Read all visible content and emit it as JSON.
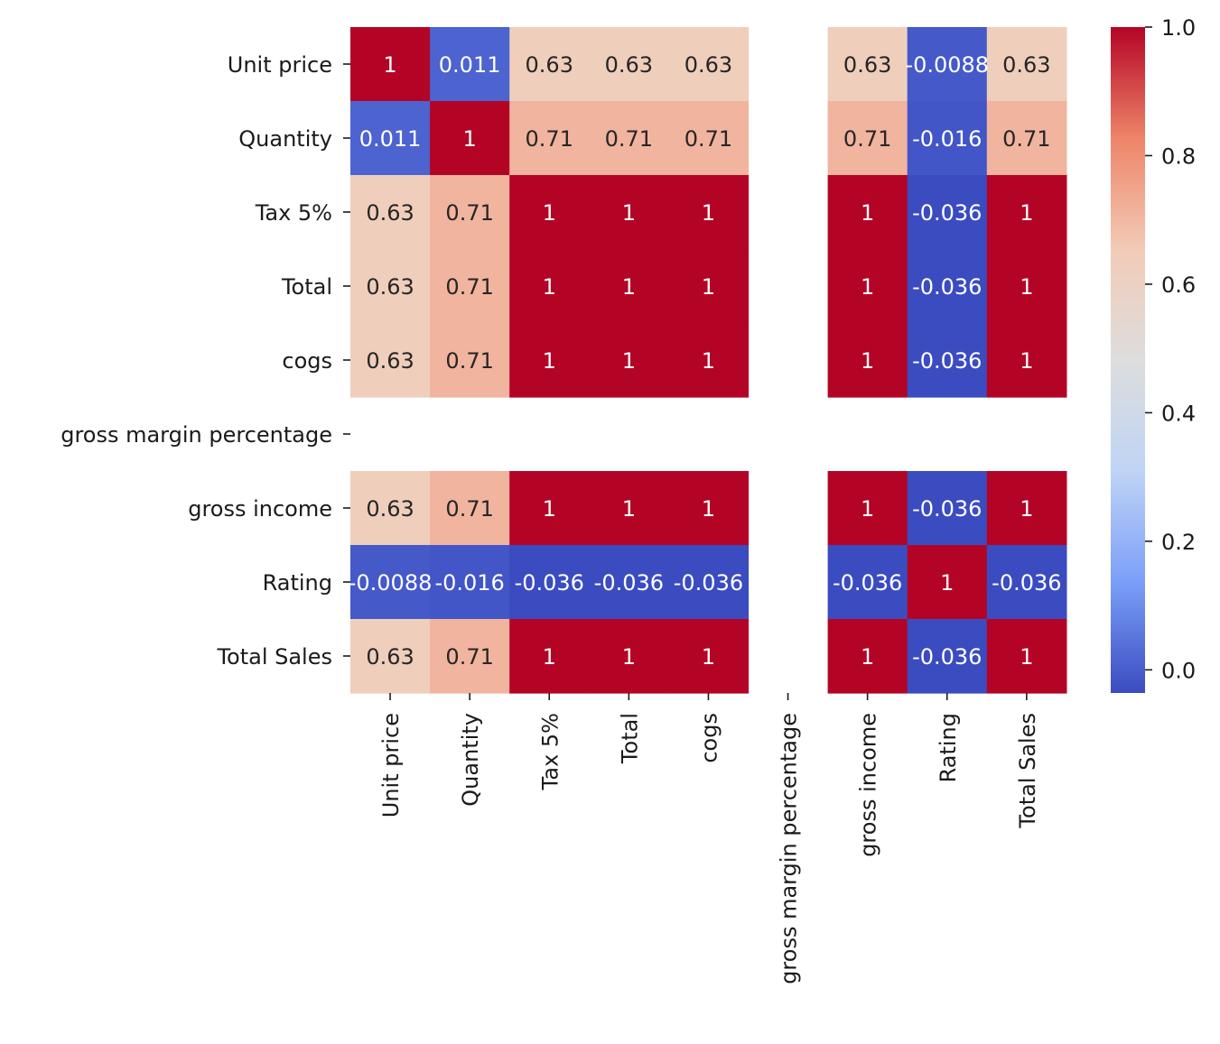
{
  "chart_data": {
    "type": "heatmap",
    "title": "",
    "xlabel": "",
    "ylabel": "",
    "colormap": "coolwarm",
    "colormap_stops": [
      "#3b4cc0",
      "#7b9ff9",
      "#c0d4f5",
      "#dddddd",
      "#f2cbb7",
      "#ee8468",
      "#b40426"
    ],
    "color_range": [
      -0.036,
      1.0
    ],
    "labels": [
      "Unit price",
      "Quantity",
      "Tax 5%",
      "Total",
      "cogs",
      "gross margin percentage",
      "gross income",
      "Rating",
      "Total Sales"
    ],
    "values": [
      [
        1,
        0.011,
        0.63,
        0.63,
        0.63,
        null,
        0.63,
        -0.0088,
        0.63
      ],
      [
        0.011,
        1,
        0.71,
        0.71,
        0.71,
        null,
        0.71,
        -0.016,
        0.71
      ],
      [
        0.63,
        0.71,
        1,
        1,
        1,
        null,
        1,
        -0.036,
        1
      ],
      [
        0.63,
        0.71,
        1,
        1,
        1,
        null,
        1,
        -0.036,
        1
      ],
      [
        0.63,
        0.71,
        1,
        1,
        1,
        null,
        1,
        -0.036,
        1
      ],
      [
        null,
        null,
        null,
        null,
        null,
        null,
        null,
        null,
        null
      ],
      [
        0.63,
        0.71,
        1,
        1,
        1,
        null,
        1,
        -0.036,
        1
      ],
      [
        -0.0088,
        -0.016,
        -0.036,
        -0.036,
        -0.036,
        null,
        -0.036,
        1,
        -0.036
      ],
      [
        0.63,
        0.71,
        1,
        1,
        1,
        null,
        1,
        -0.036,
        1
      ]
    ],
    "annotations": [
      [
        "1",
        "0.011",
        "0.63",
        "0.63",
        "0.63",
        "",
        "0.63",
        "-0.0088",
        "0.63"
      ],
      [
        "0.011",
        "1",
        "0.71",
        "0.71",
        "0.71",
        "",
        "0.71",
        "-0.016",
        "0.71"
      ],
      [
        "0.63",
        "0.71",
        "1",
        "1",
        "1",
        "",
        "1",
        "-0.036",
        "1"
      ],
      [
        "0.63",
        "0.71",
        "1",
        "1",
        "1",
        "",
        "1",
        "-0.036",
        "1"
      ],
      [
        "0.63",
        "0.71",
        "1",
        "1",
        "1",
        "",
        "1",
        "-0.036",
        "1"
      ],
      [
        "",
        "",
        "",
        "",
        "",
        "",
        "",
        "",
        ""
      ],
      [
        "0.63",
        "0.71",
        "1",
        "1",
        "1",
        "",
        "1",
        "-0.036",
        "1"
      ],
      [
        "-0.0088",
        "-0.016",
        "-0.036",
        "-0.036",
        "-0.036",
        "",
        "-0.036",
        "1",
        "-0.036"
      ],
      [
        "0.63",
        "0.71",
        "1",
        "1",
        "1",
        "",
        "1",
        "-0.036",
        "1"
      ]
    ],
    "colorbar": {
      "ticks": [
        0.0,
        0.2,
        0.4,
        0.6,
        0.8,
        1.0
      ],
      "tick_labels": [
        "0.0",
        "0.2",
        "0.4",
        "0.6",
        "0.8",
        "1.0"
      ],
      "position": "right"
    }
  }
}
